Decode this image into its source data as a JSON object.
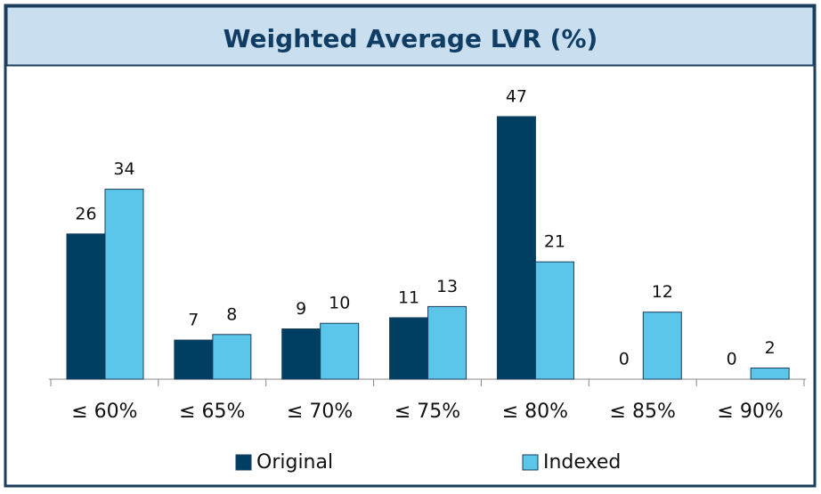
{
  "chart_data": {
    "type": "bar",
    "title": "Weighted Average LVR (%)",
    "categories": [
      "≤ 60%",
      "≤ 65%",
      "≤ 70%",
      "≤ 75%",
      "≤ 80%",
      "≤ 85%",
      "≤ 90%"
    ],
    "series": [
      {
        "name": "Original",
        "color": "#003f62",
        "values": [
          26,
          7,
          9,
          11,
          47,
          0,
          0
        ]
      },
      {
        "name": "Indexed",
        "color": "#5bc5ea",
        "values": [
          34,
          8,
          10,
          13,
          21,
          12,
          2
        ]
      }
    ]
  }
}
